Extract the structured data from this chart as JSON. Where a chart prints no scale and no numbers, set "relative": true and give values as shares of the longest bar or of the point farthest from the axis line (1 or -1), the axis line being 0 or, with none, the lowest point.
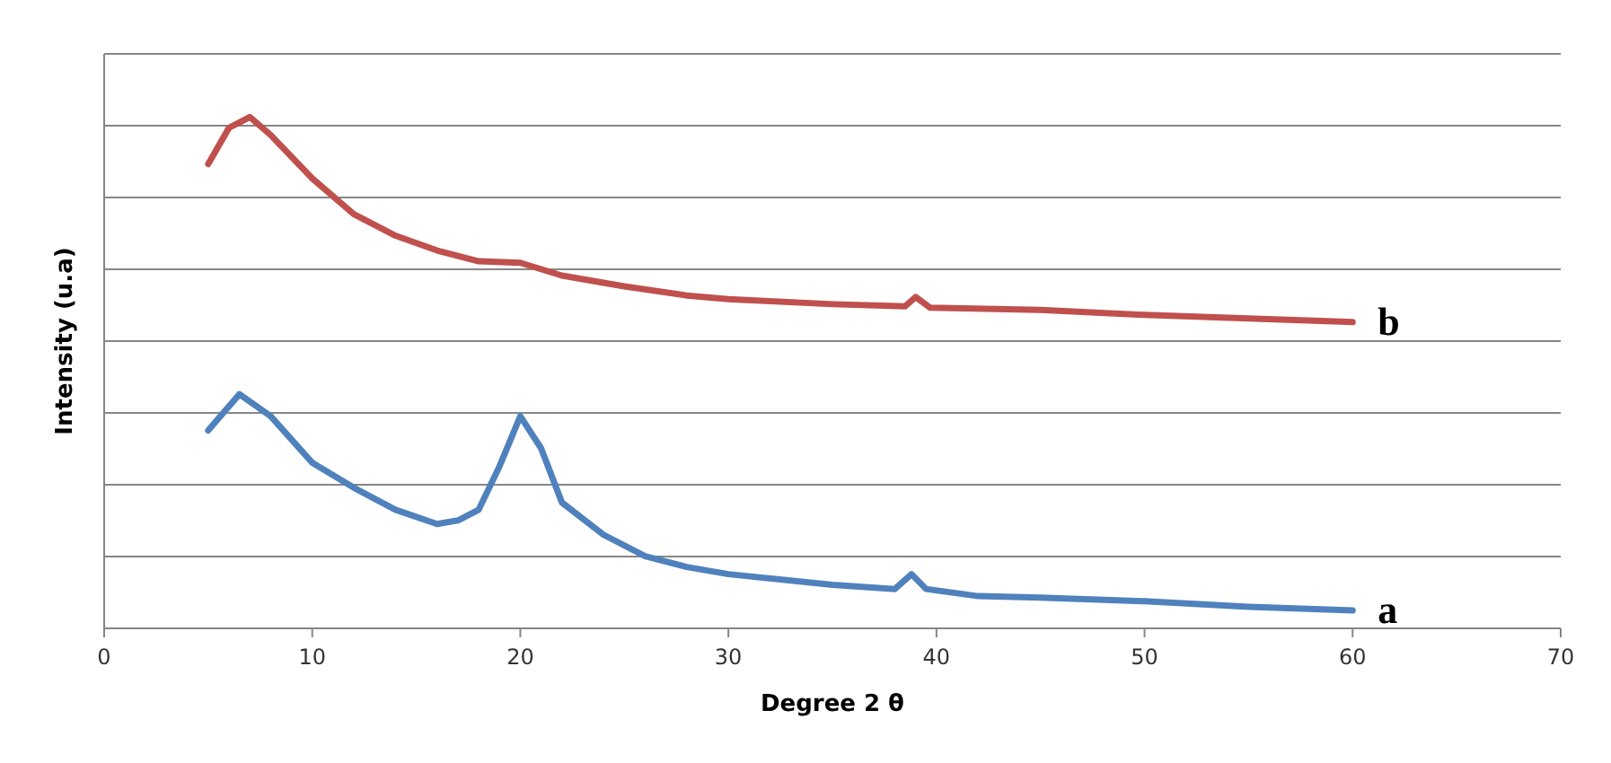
{
  "chart_data": {
    "type": "line",
    "relative": true,
    "xlabel": "Degree 2 θ",
    "ylabel": "Intensity (u.a)",
    "xlim": [
      0,
      70
    ],
    "xticks": [
      0,
      10,
      20,
      30,
      40,
      50,
      60,
      70
    ],
    "grid": "y",
    "legend": false,
    "marker": "none",
    "line_style": "solid",
    "series": [
      {
        "name": "b",
        "color": "#c0504d",
        "x": [
          5,
          6,
          7,
          8,
          10,
          12,
          14,
          16,
          18,
          20,
          22,
          25,
          28,
          30,
          35,
          38.5,
          39,
          39.7,
          45,
          50,
          55,
          60
        ],
        "values": [
          0.908,
          0.979,
          1,
          0.965,
          0.88,
          0.81,
          0.768,
          0.739,
          0.718,
          0.715,
          0.69,
          0.669,
          0.651,
          0.644,
          0.634,
          0.63,
          0.648,
          0.627,
          0.623,
          0.613,
          0.606,
          0.599
        ]
      },
      {
        "name": "a",
        "color": "#4f81bd",
        "x": [
          5,
          6.5,
          8,
          10,
          12,
          14,
          16,
          17,
          18,
          19,
          20,
          21,
          22,
          24,
          26,
          28,
          30,
          35,
          38,
          38.8,
          39.5,
          42,
          45,
          50,
          55,
          60
        ],
        "values": [
          0.387,
          0.458,
          0.415,
          0.324,
          0.275,
          0.232,
          0.204,
          0.211,
          0.232,
          0.317,
          0.415,
          0.352,
          0.246,
          0.183,
          0.141,
          0.12,
          0.106,
          0.085,
          0.077,
          0.106,
          0.077,
          0.063,
          0.06,
          0.053,
          0.042,
          0.035
        ]
      }
    ]
  }
}
